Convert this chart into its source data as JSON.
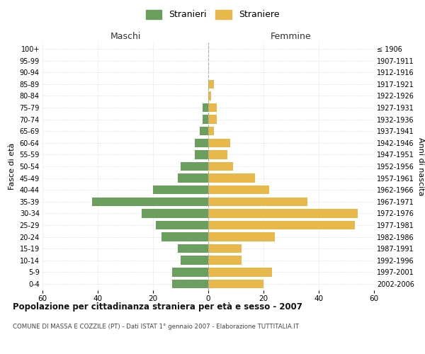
{
  "age_groups": [
    "0-4",
    "5-9",
    "10-14",
    "15-19",
    "20-24",
    "25-29",
    "30-34",
    "35-39",
    "40-44",
    "45-49",
    "50-54",
    "55-59",
    "60-64",
    "65-69",
    "70-74",
    "75-79",
    "80-84",
    "85-89",
    "90-94",
    "95-99",
    "100+"
  ],
  "birth_years": [
    "2002-2006",
    "1997-2001",
    "1992-1996",
    "1987-1991",
    "1982-1986",
    "1977-1981",
    "1972-1976",
    "1967-1971",
    "1962-1966",
    "1957-1961",
    "1952-1956",
    "1947-1951",
    "1942-1946",
    "1937-1941",
    "1932-1936",
    "1927-1931",
    "1922-1926",
    "1917-1921",
    "1912-1916",
    "1907-1911",
    "≤ 1906"
  ],
  "maschi": [
    13,
    13,
    10,
    11,
    17,
    19,
    24,
    42,
    20,
    11,
    10,
    5,
    5,
    3,
    2,
    2,
    0,
    0,
    0,
    0,
    0
  ],
  "femmine": [
    20,
    23,
    12,
    12,
    24,
    53,
    54,
    36,
    22,
    17,
    9,
    7,
    8,
    2,
    3,
    3,
    1,
    2,
    0,
    0,
    0
  ],
  "color_maschi": "#6a9f5e",
  "color_femmine": "#e8b84b",
  "xlim": 60,
  "title": "Popolazione per cittadinanza straniera per età e sesso - 2007",
  "subtitle": "COMUNE DI MASSA E COZZILE (PT) - Dati ISTAT 1° gennaio 2007 - Elaborazione TUTTITALIA.IT",
  "legend_maschi": "Stranieri",
  "legend_femmine": "Straniere",
  "xlabel_left": "Maschi",
  "xlabel_right": "Femmine",
  "ylabel_left": "Fasce di età",
  "ylabel_right": "Anni di nascita",
  "background_color": "#ffffff",
  "grid_color": "#cccccc"
}
